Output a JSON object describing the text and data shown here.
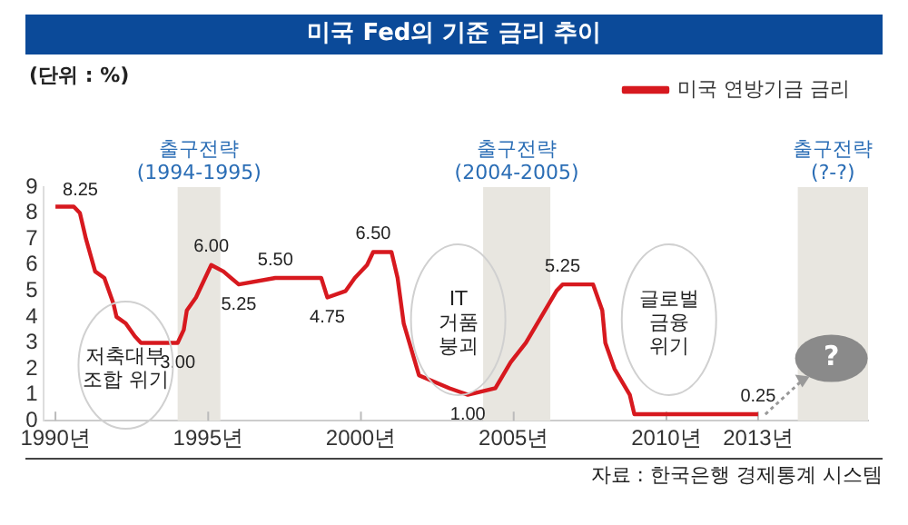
{
  "chart_data": {
    "type": "line",
    "title": "미국 Fed의 기준 금리 추이",
    "ylabel": "(단위 : %)",
    "series": [
      {
        "name": "미국 연방기금 금리",
        "color": "#d7191f",
        "x": [
          1990.0,
          1990.6,
          1990.8,
          1991.0,
          1991.3,
          1991.6,
          1991.9,
          1992.0,
          1992.3,
          1992.6,
          1992.8,
          1994.0,
          1994.2,
          1994.3,
          1994.6,
          1994.9,
          1995.1,
          1995.5,
          1996.0,
          1997.2,
          1998.7,
          1998.9,
          1999.5,
          1999.8,
          2000.2,
          2000.4,
          2001.0,
          2001.2,
          2001.4,
          2001.9,
          2002.9,
          2003.5,
          2004.4,
          2004.9,
          2005.4,
          2005.9,
          2006.4,
          2006.6,
          2007.6,
          2007.9,
          2008.0,
          2008.3,
          2008.8,
          2008.95,
          2013.0
        ],
        "values": [
          8.25,
          8.25,
          8.0,
          7.0,
          5.75,
          5.5,
          4.5,
          4.0,
          3.75,
          3.25,
          3.0,
          3.0,
          3.5,
          4.25,
          4.75,
          5.5,
          6.0,
          5.75,
          5.25,
          5.5,
          5.5,
          4.75,
          5.0,
          5.5,
          6.0,
          6.5,
          6.5,
          5.5,
          3.75,
          1.75,
          1.25,
          1.0,
          1.25,
          2.25,
          3.0,
          4.0,
          5.0,
          5.25,
          5.25,
          4.25,
          3.0,
          2.0,
          1.0,
          0.25,
          0.25
        ],
        "value_labels": [
          "8.25",
          null,
          null,
          null,
          null,
          null,
          null,
          null,
          null,
          null,
          null,
          "3.00",
          null,
          null,
          null,
          null,
          "6.00",
          null,
          "5.25",
          "5.50",
          null,
          "4.75",
          null,
          null,
          null,
          "6.50",
          null,
          null,
          null,
          null,
          null,
          "1.00",
          null,
          null,
          null,
          null,
          null,
          "5.25",
          null,
          null,
          null,
          null,
          null,
          null,
          "0.25"
        ]
      }
    ],
    "xlim": [
      1989.6,
      2016.6
    ],
    "xticks": [
      {
        "value": 1990,
        "label": "1990년"
      },
      {
        "value": 1995,
        "label": "1995년"
      },
      {
        "value": 2000,
        "label": "2000년"
      },
      {
        "value": 2005,
        "label": "2005년"
      },
      {
        "value": 2010,
        "label": "2010년"
      },
      {
        "value": 2013,
        "label": "2013년"
      }
    ],
    "ylim": [
      0,
      9
    ],
    "yticks": [
      0,
      1,
      2,
      3,
      4,
      5,
      6,
      7,
      8,
      9
    ],
    "bands": [
      {
        "axis": "x",
        "from": 1994.0,
        "to": 1995.4,
        "label": "출구전략\n(1994-1995)",
        "color": "#e8e6e0"
      },
      {
        "axis": "x",
        "from": 2004.0,
        "to": 2006.2,
        "label": "출구전략\n(2004-2005)",
        "color": "#e8e6e0"
      },
      {
        "axis": "x",
        "from": 2014.3,
        "to": 2016.6,
        "label": "출구전략\n(?-?)",
        "color": "#e8e6e0"
      }
    ],
    "annotations": [
      {
        "text": "저축대부\n조합 위기",
        "x": 1992.3,
        "y": 3.75
      },
      {
        "text": "IT\n거품\n붕괴",
        "x": 2001.4,
        "y": 3.75
      },
      {
        "text": "글로벌\n금융\n위기",
        "x": 2008.3,
        "y": 2.0
      },
      {
        "text": "?",
        "x": 2015.4,
        "y": 2.4
      },
      "자료 : 한국은행 경제통계 시스템"
    ],
    "legend": "top right",
    "grid": false,
    "marker": "none",
    "line_style": "solid"
  }
}
